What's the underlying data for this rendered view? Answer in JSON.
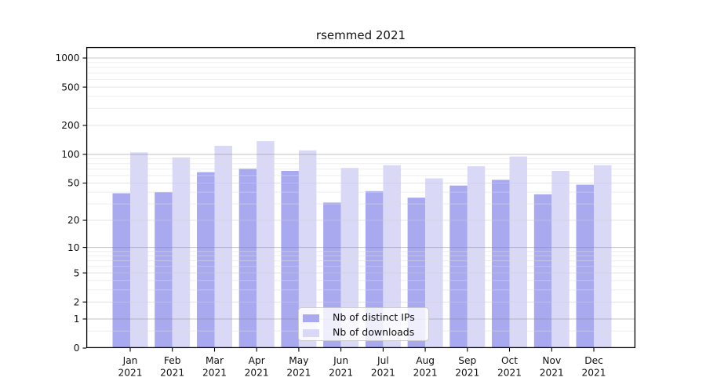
{
  "chart_data": {
    "type": "bar",
    "title": "rsemmed 2021",
    "categories": [
      "Jan",
      "Feb",
      "Mar",
      "Apr",
      "May",
      "Jun",
      "Jul",
      "Aug",
      "Sep",
      "Oct",
      "Nov",
      "Dec"
    ],
    "x_year_label": "2021",
    "series": [
      {
        "name": "Nb of distinct IPs",
        "color": "#a9a9f0",
        "values": [
          39,
          40,
          65,
          71,
          67,
          31,
          41,
          35,
          47,
          54,
          38,
          48
        ]
      },
      {
        "name": "Nb of downloads",
        "color": "#d9d9f7",
        "values": [
          105,
          93,
          123,
          137,
          110,
          72,
          77,
          56,
          75,
          95,
          67,
          77
        ]
      }
    ],
    "yscale": "log10(1+v)",
    "ylim": [
      0,
      1300
    ],
    "yticks": [
      0,
      1,
      2,
      5,
      10,
      20,
      50,
      100,
      200,
      500,
      1000
    ],
    "gridlines": {
      "major": [
        1,
        10,
        100,
        1000
      ],
      "mid": [
        2,
        5,
        20,
        50,
        200,
        500
      ],
      "minor": [
        0.5,
        3,
        4,
        6,
        7,
        8,
        9,
        30,
        40,
        60,
        70,
        80,
        90,
        300,
        400,
        600,
        700,
        800,
        900
      ]
    },
    "grid": true,
    "legend_position": "lower-center"
  }
}
